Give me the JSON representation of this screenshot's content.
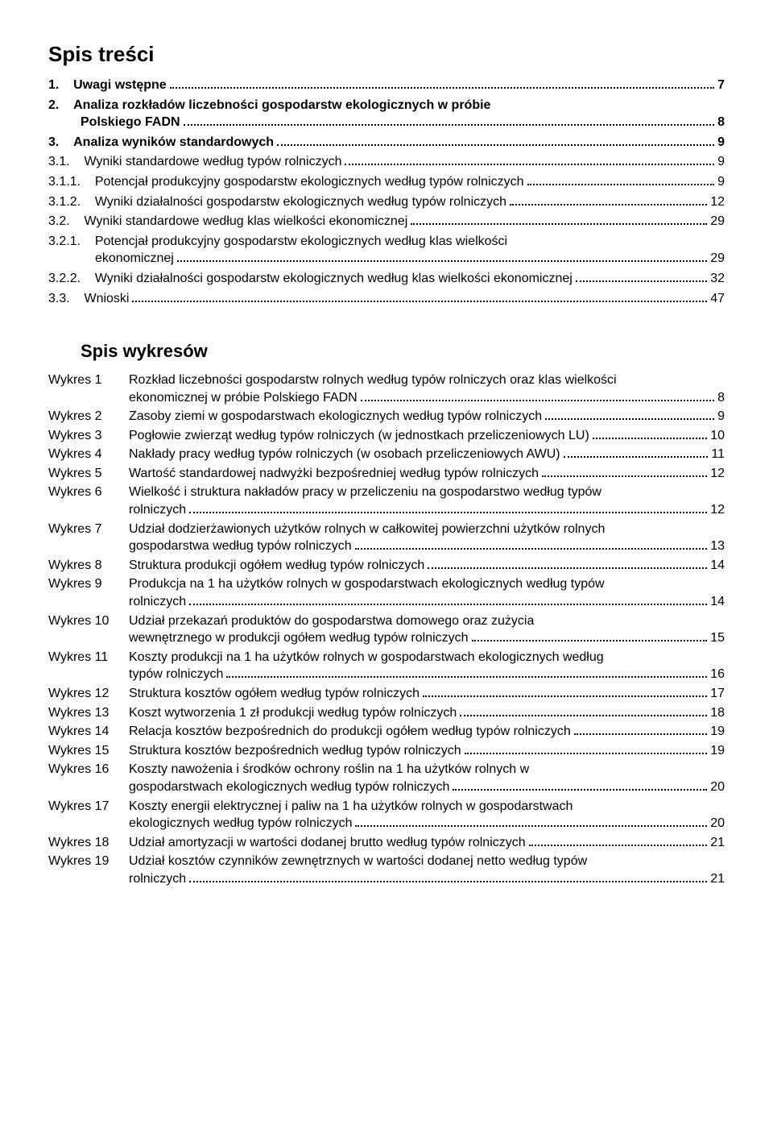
{
  "doc": {
    "title_fontsize": 26,
    "heading_fontsize": 22,
    "body_fontsize": 16,
    "text_color": "#000000",
    "background_color": "#ffffff",
    "dot_leader_color": "#000000",
    "font_family": "Arial"
  },
  "spis_tresci": {
    "heading": "Spis treści",
    "entries": [
      {
        "num": "1.",
        "label": "Uwagi wstępne",
        "page": "7",
        "bold": true,
        "indent": 0
      },
      {
        "num": "2.",
        "label": "Analiza rozkładów liczebności gospodarstw ekologicznych w próbie",
        "label2": "Polskiego FADN",
        "page": "8",
        "bold": true,
        "indent": 0
      },
      {
        "num": "3.",
        "label": "Analiza wyników standardowych",
        "page": "9",
        "bold": true,
        "indent": 0
      },
      {
        "num": "3.1.",
        "label": "Wyniki standardowe według typów rolniczych",
        "page": "9",
        "bold": false,
        "indent": 0
      },
      {
        "num": "3.1.1.",
        "label": "Potencjał produkcyjny gospodarstw ekologicznych według typów rolniczych",
        "page": "9",
        "bold": false,
        "indent": 0
      },
      {
        "num": "3.1.2.",
        "label": "Wyniki działalności gospodarstw ekologicznych według typów rolniczych",
        "page": "12",
        "bold": false,
        "indent": 0
      },
      {
        "num": "3.2.",
        "label": "Wyniki standardowe według klas wielkości ekonomicznej",
        "page": "29",
        "bold": false,
        "indent": 0
      },
      {
        "num": "3.2.1.",
        "label": "Potencjał produkcyjny gospodarstw ekologicznych według klas wielkości",
        "label2": "ekonomicznej",
        "page": "29",
        "bold": false,
        "indent": 0,
        "indent2": 58
      },
      {
        "num": "3.2.2.",
        "label": "Wyniki działalności gospodarstw ekologicznych według klas wielkości ekonomicznej",
        "page": "32",
        "bold": false,
        "indent": 0
      },
      {
        "num": "3.3.",
        "label": "Wnioski",
        "page": "47",
        "bold": false,
        "indent": 0
      }
    ]
  },
  "spis_wykresow": {
    "heading": "Spis wykresów",
    "entries": [
      {
        "num": "Wykres 1",
        "lines": [
          "Rozkład liczebności gospodarstw rolnych według typów rolniczych oraz klas wielkości",
          "ekonomicznej w próbie Polskiego FADN"
        ],
        "page": "8"
      },
      {
        "num": "Wykres 2",
        "lines": [
          "Zasoby ziemi w gospodarstwach ekologicznych według typów rolniczych"
        ],
        "page": "9"
      },
      {
        "num": "Wykres 3",
        "lines": [
          "Pogłowie zwierząt według typów rolniczych (w jednostkach przeliczeniowych LU)"
        ],
        "page": "10"
      },
      {
        "num": "Wykres 4",
        "lines": [
          "Nakłady pracy według typów rolniczych (w osobach przeliczeniowych AWU)"
        ],
        "page": "11"
      },
      {
        "num": "Wykres 5",
        "lines": [
          "Wartość standardowej nadwyżki bezpośredniej według typów rolniczych"
        ],
        "page": "12"
      },
      {
        "num": "Wykres 6",
        "lines": [
          "Wielkość i struktura nakładów pracy w przeliczeniu na gospodarstwo według typów",
          "rolniczych"
        ],
        "page": "12"
      },
      {
        "num": "Wykres 7",
        "lines": [
          "Udział dodzierżawionych użytków rolnych w całkowitej powierzchni użytków rolnych",
          "gospodarstwa według typów rolniczych"
        ],
        "page": "13"
      },
      {
        "num": "Wykres 8",
        "lines": [
          "Struktura produkcji ogółem według typów rolniczych"
        ],
        "page": "14"
      },
      {
        "num": "Wykres 9",
        "lines": [
          "Produkcja na 1 ha użytków rolnych w gospodarstwach ekologicznych według typów",
          "rolniczych"
        ],
        "page": "14"
      },
      {
        "num": "Wykres 10",
        "lines": [
          "Udział przekazań produktów do gospodarstwa domowego oraz zużycia",
          "wewnętrznego w produkcji ogółem według typów rolniczych"
        ],
        "page": "15"
      },
      {
        "num": "Wykres 11",
        "lines": [
          "Koszty produkcji na 1 ha użytków rolnych w gospodarstwach ekologicznych według",
          "typów rolniczych"
        ],
        "page": "16"
      },
      {
        "num": "Wykres 12",
        "lines": [
          "Struktura kosztów ogółem według typów rolniczych"
        ],
        "page": "17"
      },
      {
        "num": "Wykres 13",
        "lines": [
          "Koszt wytworzenia 1 zł produkcji według typów rolniczych"
        ],
        "page": "18"
      },
      {
        "num": "Wykres 14",
        "lines": [
          "Relacja kosztów bezpośrednich do produkcji ogółem według typów rolniczych"
        ],
        "page": "19"
      },
      {
        "num": "Wykres 15",
        "lines": [
          "Struktura kosztów bezpośrednich według typów rolniczych"
        ],
        "page": "19"
      },
      {
        "num": "Wykres 16",
        "lines": [
          "Koszty nawożenia i środków ochrony roślin na 1 ha użytków rolnych  w",
          "gospodarstwach ekologicznych według typów rolniczych"
        ],
        "page": "20"
      },
      {
        "num": "Wykres 17",
        "lines": [
          "Koszty energii elektrycznej i paliw na 1 ha użytków rolnych w gospodarstwach",
          "ekologicznych według typów rolniczych"
        ],
        "page": "20"
      },
      {
        "num": "Wykres 18",
        "lines": [
          "Udział amortyzacji w wartości dodanej brutto według typów rolniczych"
        ],
        "page": "21"
      },
      {
        "num": "Wykres 19",
        "lines": [
          "Udział  kosztów czynników zewnętrznych w wartości dodanej netto według typów",
          "rolniczych"
        ],
        "page": "21"
      }
    ]
  }
}
